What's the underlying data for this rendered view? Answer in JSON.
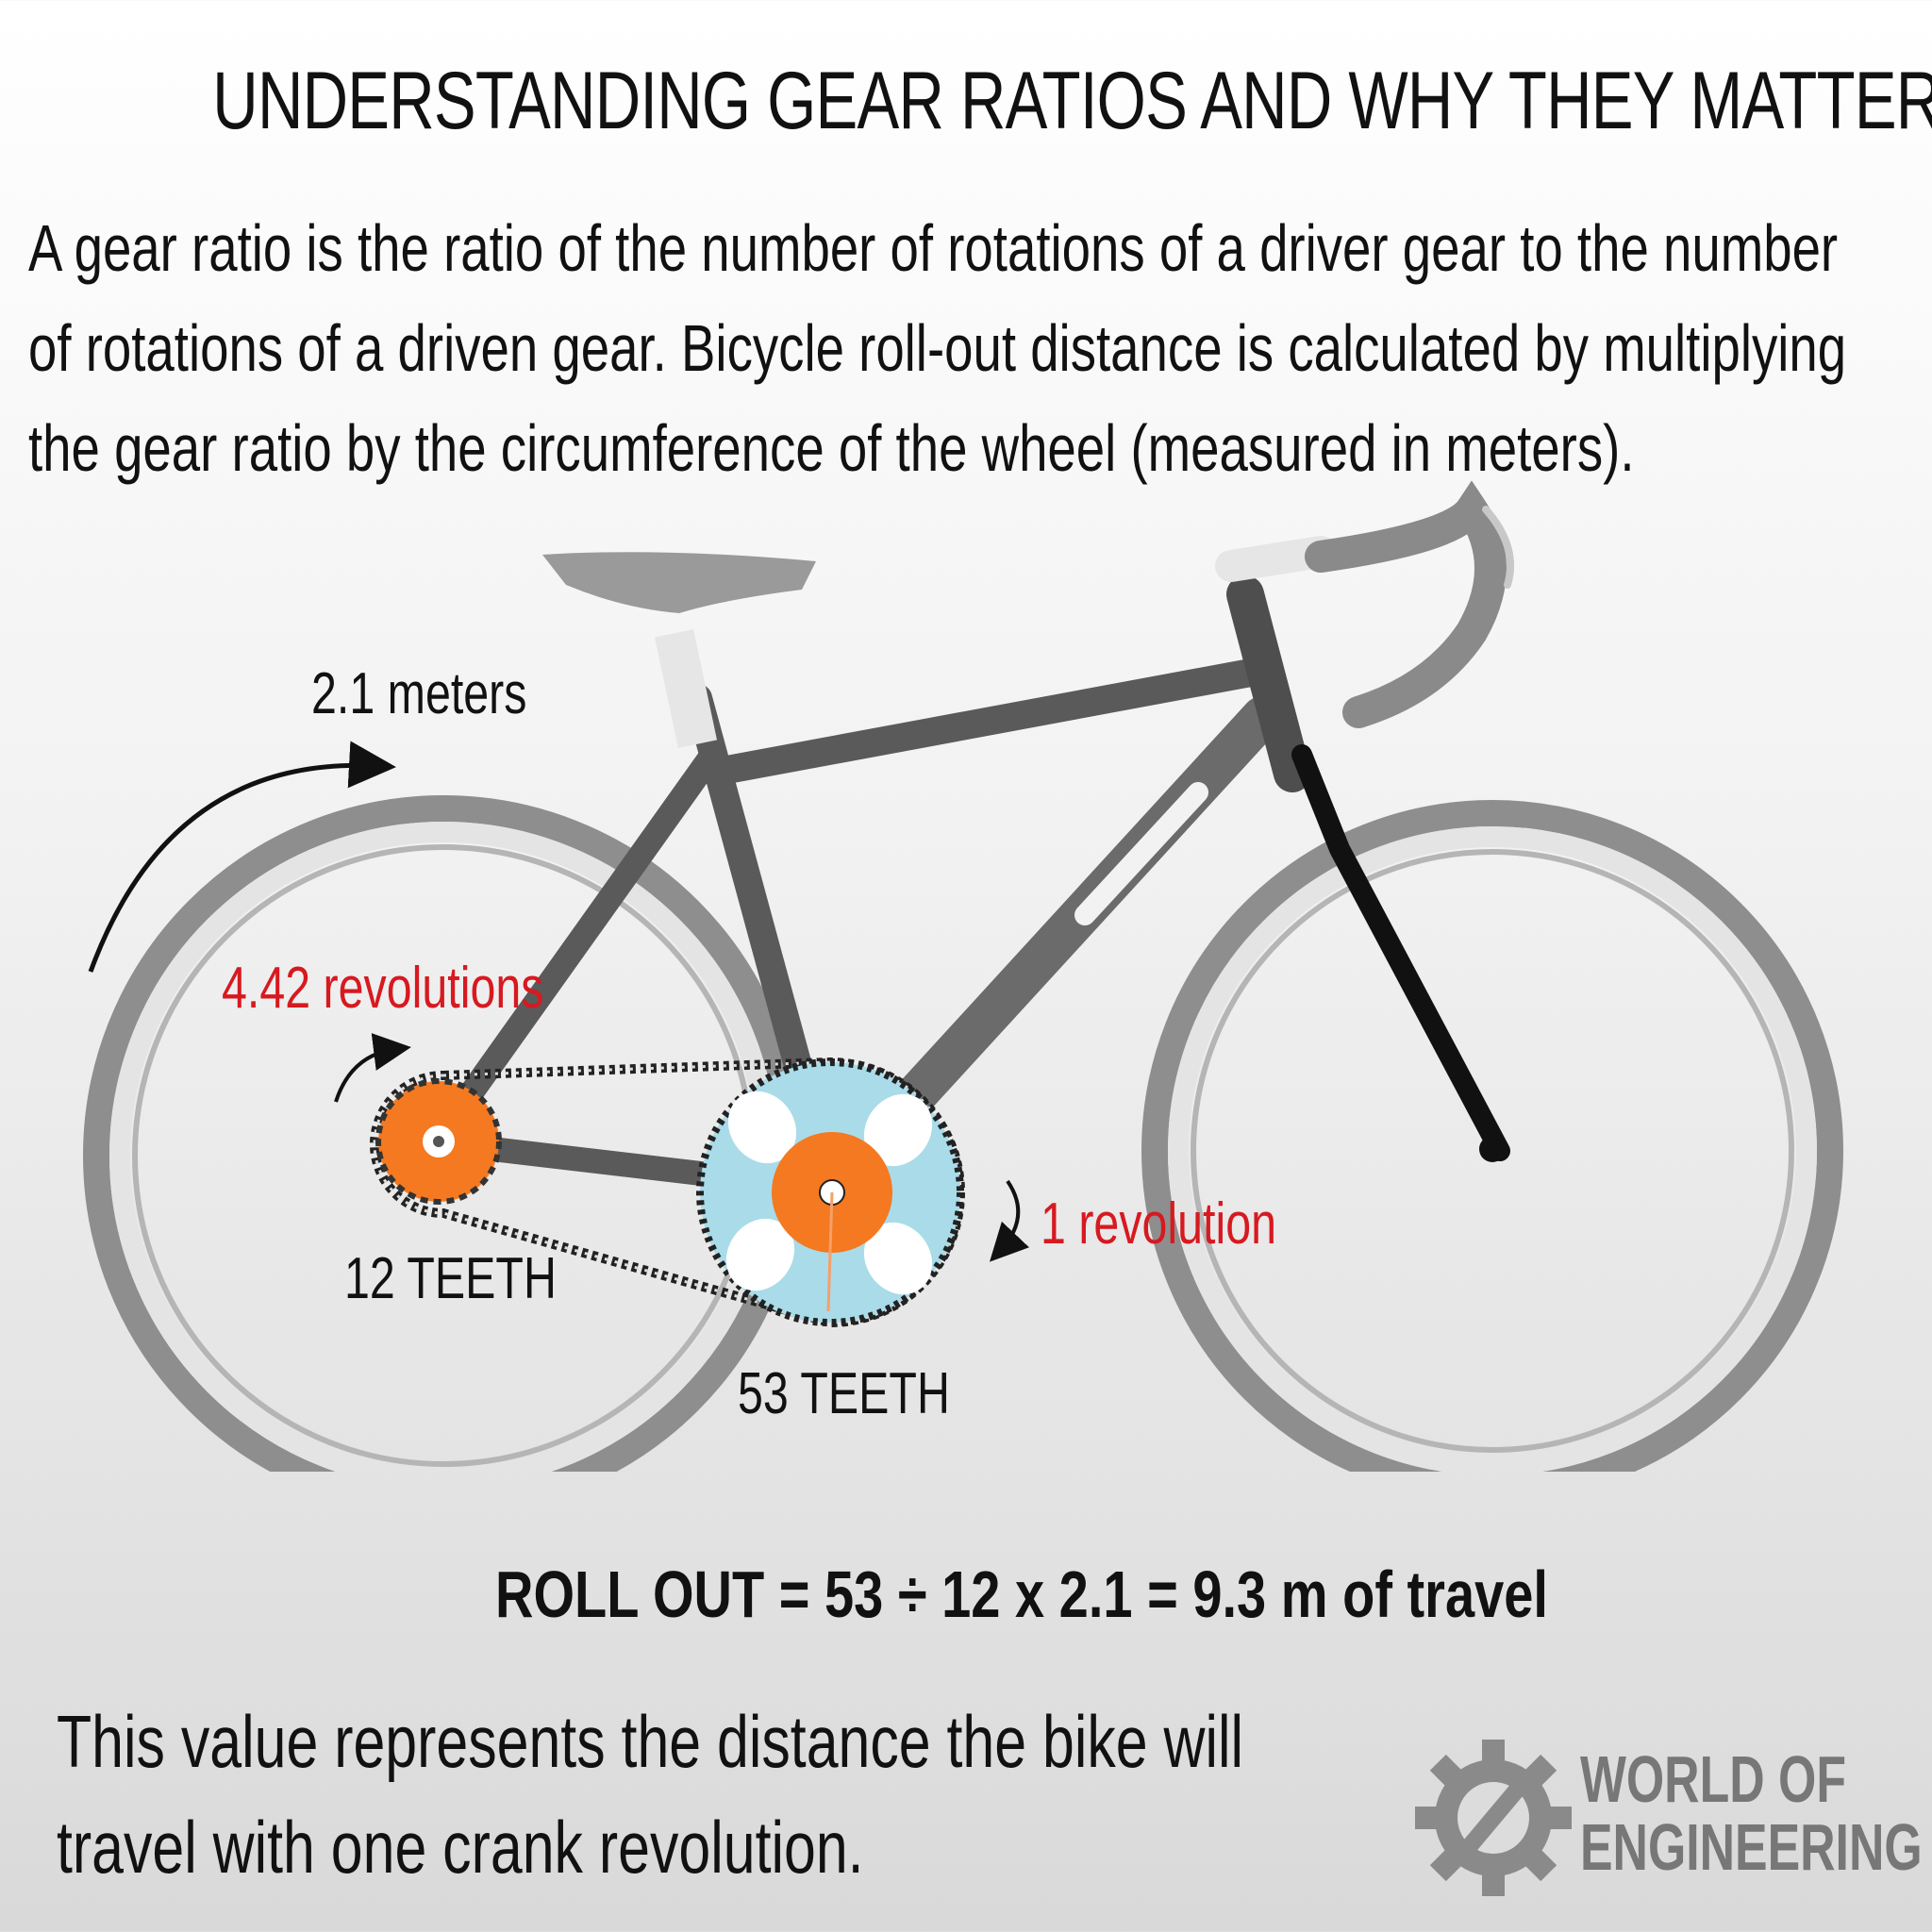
{
  "title": "UNDERSTANDING GEAR RATIOS AND WHY THEY MATTER",
  "intro": "A gear ratio is the ratio of the number of rotations of a driver gear to the number of rotations of a driven gear. Bicycle roll-out distance is calculated by multiplying the gear ratio by the circumference of the wheel (measured in meters).",
  "labels": {
    "wheel_distance": "2.1 meters",
    "rear_revolutions": "4.42 revolutions",
    "crank_revolution": "1 revolution",
    "rear_teeth": "12 TEETH",
    "front_teeth": "53 TEETH"
  },
  "formula": "ROLL OUT =  53 ÷ 12 x 2.1 = 9.3 m of travel",
  "footer": "This value represents the distance the bike will travel with one crank revolution.",
  "brand": {
    "line1": "WORLD OF",
    "line2": "ENGINEERING",
    "icon": "gear-wrench-icon"
  },
  "colors": {
    "accent_red": "#d71920",
    "sprocket_orange": "#f47920",
    "chainring_blue": "#a9dbe9",
    "frame_gray": "#5a5a5a"
  }
}
